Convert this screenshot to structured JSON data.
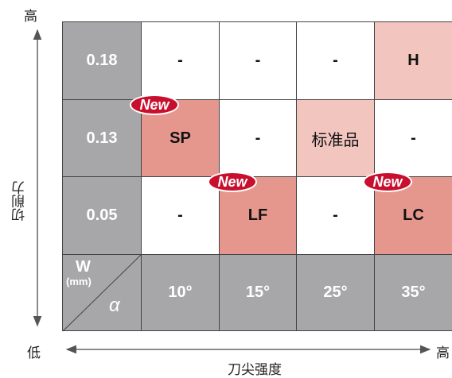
{
  "axis": {
    "y_label": "切削力",
    "y_high": "高",
    "y_low": "低",
    "x_label": "刀尖强度",
    "x_high": "高"
  },
  "table": {
    "corner": {
      "w": "W",
      "unit": "(mm)",
      "alpha": "α"
    },
    "columns": [
      "10°",
      "15°",
      "25°",
      "35°"
    ],
    "rows": [
      {
        "header": "0.18",
        "cells": [
          {
            "text": "-"
          },
          {
            "text": "-"
          },
          {
            "text": "-"
          },
          {
            "text": "H",
            "color": "#f2c5bf"
          }
        ]
      },
      {
        "header": "0.13",
        "cells": [
          {
            "text": "SP",
            "color": "#e5978d",
            "badge": "New"
          },
          {
            "text": "-"
          },
          {
            "text": "标准品",
            "color": "#f2c5bf"
          },
          {
            "text": "-"
          }
        ]
      },
      {
        "header": "0.05",
        "cells": [
          {
            "text": "-"
          },
          {
            "text": "LF",
            "color": "#e5978d",
            "badge": "New"
          },
          {
            "text": "-"
          },
          {
            "text": "LC",
            "color": "#e5978d",
            "badge": "New"
          }
        ]
      }
    ]
  }
}
